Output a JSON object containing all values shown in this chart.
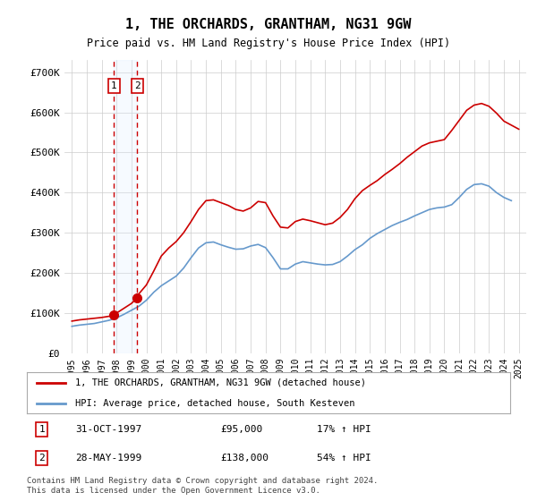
{
  "title": "1, THE ORCHARDS, GRANTHAM, NG31 9GW",
  "subtitle": "Price paid vs. HM Land Registry's House Price Index (HPI)",
  "legend_line1": "1, THE ORCHARDS, GRANTHAM, NG31 9GW (detached house)",
  "legend_line2": "HPI: Average price, detached house, South Kesteven",
  "footnote": "Contains HM Land Registry data © Crown copyright and database right 2024.\nThis data is licensed under the Open Government Licence v3.0.",
  "transaction1_date": "31-OCT-1997",
  "transaction1_price": "£95,000",
  "transaction1_hpi": "17% ↑ HPI",
  "transaction2_date": "28-MAY-1999",
  "transaction2_price": "£138,000",
  "transaction2_hpi": "54% ↑ HPI",
  "transaction1_x": 1997.83,
  "transaction1_y": 95000,
  "transaction2_x": 1999.38,
  "transaction2_y": 138000,
  "ylim": [
    0,
    730000
  ],
  "xlim_start": 1994.5,
  "xlim_end": 2025.5,
  "yticks": [
    0,
    100000,
    200000,
    300000,
    400000,
    500000,
    600000,
    700000
  ],
  "ytick_labels": [
    "£0",
    "£100K",
    "£200K",
    "£300K",
    "£400K",
    "£500K",
    "£600K",
    "£700K"
  ],
  "xticks": [
    1995,
    1996,
    1997,
    1998,
    1999,
    2000,
    2001,
    2002,
    2003,
    2004,
    2005,
    2006,
    2007,
    2008,
    2009,
    2010,
    2011,
    2012,
    2013,
    2014,
    2015,
    2016,
    2017,
    2018,
    2019,
    2020,
    2021,
    2022,
    2023,
    2024,
    2025
  ],
  "property_color": "#cc0000",
  "hpi_color": "#6699cc",
  "grid_color": "#cccccc",
  "bg_color": "#ffffff",
  "vline_bg_color": "#ddeeff"
}
